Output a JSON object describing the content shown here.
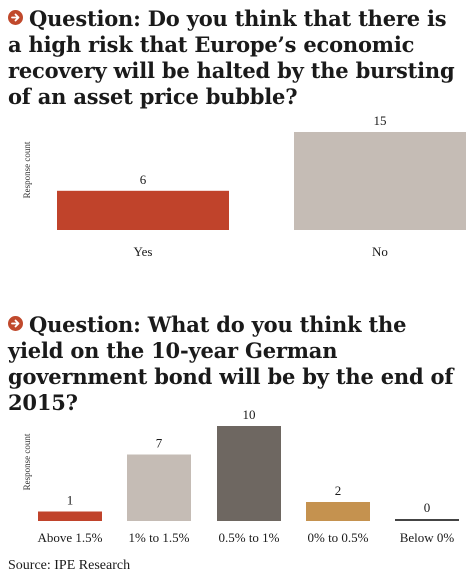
{
  "colors": {
    "accent": "#c0492c"
  },
  "icons": {
    "bullet": "arrow-right-circle-icon"
  },
  "chart_data": [
    {
      "type": "bar",
      "title": "Question: Do you think that there is a high risk that Europe’s economic recovery will be halted by the bursting of an asset price bubble?",
      "ylabel": "Response count",
      "xlabel": "",
      "categories": [
        "Yes",
        "No"
      ],
      "values": [
        6,
        15
      ],
      "colors": [
        "#c0432b",
        "#c5bcb5"
      ],
      "ylim": [
        0,
        15
      ],
      "grid": false,
      "legend": "none"
    },
    {
      "type": "bar",
      "title": "Question: What do you think the yield on the 10-year German government bond will be by the end of 2015?",
      "ylabel": "Response count",
      "xlabel": "",
      "categories": [
        "Above 1.5%",
        "1% to 1.5%",
        "0.5% to 1%",
        "0% to 0.5%",
        "Below 0%"
      ],
      "values": [
        1,
        7,
        10,
        2,
        0
      ],
      "colors": [
        "#c0432b",
        "#c5bcb5",
        "#6e6761",
        "#c5924f",
        "#444444"
      ],
      "ylim": [
        0,
        10
      ],
      "grid": false,
      "legend": "none"
    }
  ],
  "footer": {
    "source": "Source: IPE Research"
  }
}
